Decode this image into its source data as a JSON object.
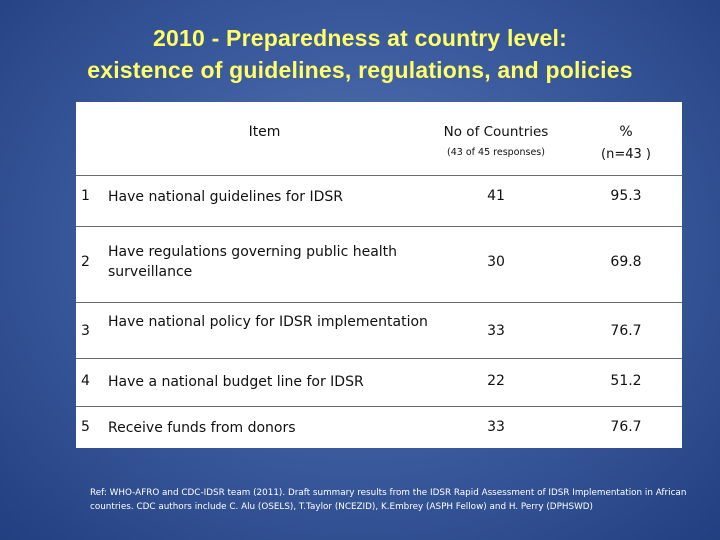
{
  "title": {
    "line1": "2010 - Preparedness at country level:",
    "line2": "existence of guidelines, regulations, and policies"
  },
  "table": {
    "header": {
      "item": "Item",
      "countries": "No of Countries",
      "countries_sub": "(43 of 45 responses)",
      "percent": "%",
      "percent_sub": "(n=43 )"
    },
    "rows": [
      {
        "num": "1",
        "item": "Have national guidelines for IDSR",
        "countries": "41",
        "percent": "95.3"
      },
      {
        "num": "2",
        "item": "Have regulations governing  public health surveillance",
        "countries": "30",
        "percent": "69.8"
      },
      {
        "num": "3",
        "item": "Have national policy for IDSR implementation",
        "countries": "33",
        "percent": "76.7"
      },
      {
        "num": "4",
        "item": "Have a national budget line for IDSR",
        "countries": "22",
        "percent": "51.2"
      },
      {
        "num": "5",
        "item": "Receive funds from donors",
        "countries": "33",
        "percent": "76.7"
      }
    ]
  },
  "reference": {
    "line1": "Ref: WHO-AFRO and CDC-IDSR team (2011).  Draft summary results from the IDSR Rapid Assessment  of IDSR Implementation in African",
    "line2": "countries. CDC authors include C. Alu (OSELS), T.Taylor (NCEZID), K.Embrey (ASPH Fellow) and H. Perry (DPHSWD)"
  }
}
